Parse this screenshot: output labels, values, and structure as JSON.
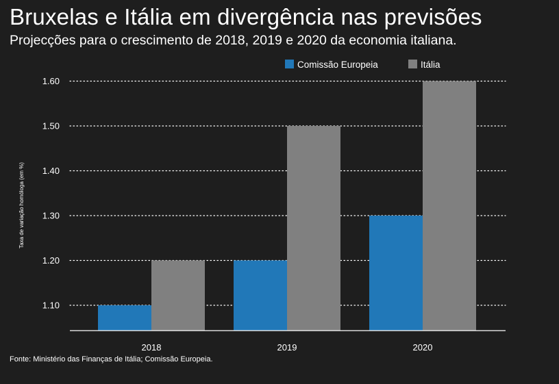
{
  "colors": {
    "background": "#1e1e1e",
    "comissao_europeia": "#2178b8",
    "italia": "#808080",
    "grid": "#ffffff",
    "text": "#ffffff"
  },
  "chart_data": {
    "type": "bar",
    "title": "Bruxelas e Itália em divergência nas previsões",
    "subtitle": "Projecções para o crescimento de 2018, 2019 e 2020 da economia italiana.",
    "ylabel": "Taxa de variação homóloga (em %)",
    "xlabel": "",
    "categories": [
      "2018",
      "2019",
      "2020"
    ],
    "series": [
      {
        "name": "Comissão Europeia",
        "color": "#2178b8",
        "values": [
          1.1,
          1.2,
          1.3
        ]
      },
      {
        "name": "Itália",
        "color": "#808080",
        "values": [
          1.2,
          1.5,
          1.6
        ]
      }
    ],
    "yticks": [
      "1.10",
      "1.20",
      "1.30",
      "1.40",
      "1.50",
      "1.60"
    ],
    "ylim": [
      1.045,
      1.6
    ],
    "grid": "horizontal dotted",
    "legend_position": "top-right"
  },
  "source": "Fonte: Ministério das Finanças de Itália; Comissão Europeia."
}
